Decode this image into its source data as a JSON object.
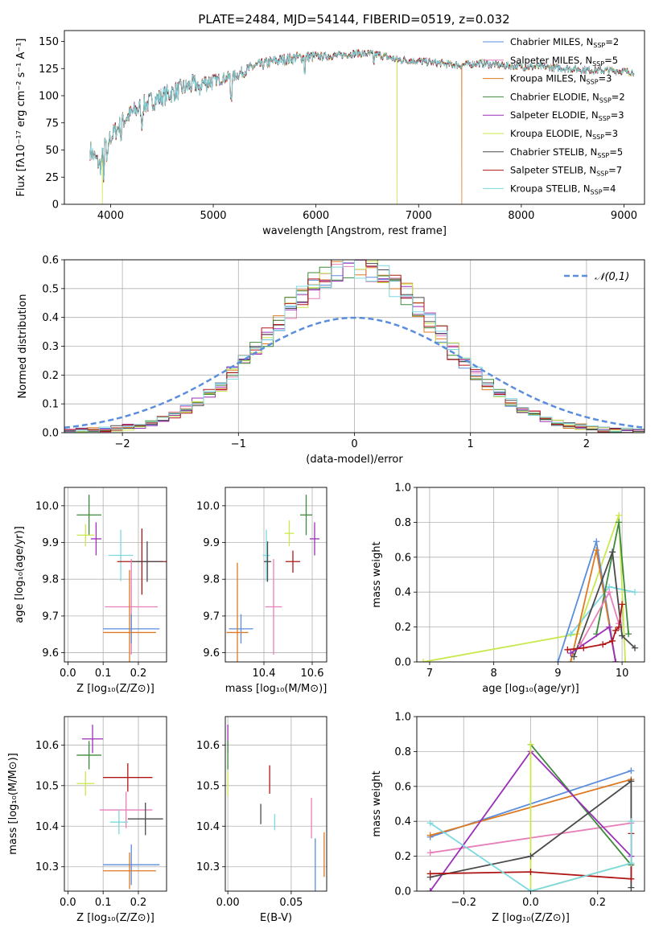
{
  "colors": {
    "Chabrier MILES": "#5b8ddd",
    "Salpeter MILES": "#e87fb9",
    "Kroupa MILES": "#dd7a22",
    "Chabrier ELODIE": "#3d8a3a",
    "Salpeter ELODIE": "#9a2fb8",
    "Kroupa ELODIE": "#c9e84c",
    "Chabrier STELIB": "#4a4a4a",
    "Salpeter STELIB": "#b01616",
    "Kroupa STELIB": "#7dd8e0"
  },
  "chart_data": [
    {
      "id": "spectrum",
      "type": "line",
      "title": "PLATE=2484, MJD=54144, FIBERID=0519, z=0.032",
      "xlabel": "wavelength [Angstrom, rest frame]",
      "ylabel": "Flux [fλ10⁻¹⁷ erg cm⁻² s⁻¹ A⁻¹]",
      "xlim": [
        3550,
        9200
      ],
      "ylim": [
        0,
        160
      ],
      "xticks": [
        4000,
        5000,
        6000,
        7000,
        8000,
        9000
      ],
      "yticks": [
        0,
        25,
        50,
        75,
        100,
        125,
        150
      ],
      "grid": false,
      "legend_position": "right",
      "legend": [
        {
          "base": "Chabrier MILES, N",
          "sub": "SSP",
          "tail": "=2"
        },
        {
          "base": "Salpeter MILES, N",
          "sub": "SSP",
          "tail": "=5"
        },
        {
          "base": "Kroupa MILES, N",
          "sub": "SSP",
          "tail": "=3"
        },
        {
          "base": "Chabrier ELODIE, N",
          "sub": "SSP",
          "tail": "=2"
        },
        {
          "base": "Salpeter ELODIE, N",
          "sub": "SSP",
          "tail": "=3"
        },
        {
          "base": "Kroupa ELODIE, N",
          "sub": "SSP",
          "tail": "=3"
        },
        {
          "base": "Chabrier STELIB, N",
          "sub": "SSP",
          "tail": "=5"
        },
        {
          "base": "Salpeter STELIB, N",
          "sub": "SSP",
          "tail": "=7"
        },
        {
          "base": "Kroupa STELIB, N",
          "sub": "SSP",
          "tail": "=4"
        }
      ],
      "continuum": [
        [
          3800,
          50
        ],
        [
          3900,
          35
        ],
        [
          3950,
          55
        ],
        [
          4050,
          68
        ],
        [
          4150,
          80
        ],
        [
          4300,
          90
        ],
        [
          4450,
          97
        ],
        [
          4600,
          103
        ],
        [
          4800,
          110
        ],
        [
          5000,
          114
        ],
        [
          5200,
          118
        ],
        [
          5400,
          127
        ],
        [
          5600,
          132
        ],
        [
          5800,
          135
        ],
        [
          6000,
          136
        ],
        [
          6200,
          137
        ],
        [
          6400,
          139
        ],
        [
          6600,
          138
        ],
        [
          6800,
          133
        ],
        [
          7000,
          132
        ],
        [
          7200,
          130
        ],
        [
          7400,
          128
        ],
        [
          7600,
          130
        ],
        [
          7800,
          128
        ],
        [
          8000,
          127
        ],
        [
          8300,
          126
        ],
        [
          8600,
          124
        ],
        [
          8900,
          123
        ],
        [
          9100,
          122
        ]
      ],
      "dips": [
        {
          "x": 3920,
          "to": 0,
          "series": "Kroupa ELODIE"
        },
        {
          "x": 6790,
          "to": 0,
          "series": "Kroupa ELODIE"
        },
        {
          "x": 7420,
          "to": 0,
          "series": "Kroupa MILES"
        }
      ]
    },
    {
      "id": "residuals",
      "type": "histogram",
      "xlabel": "(data-model)/error",
      "ylabel": "Normed distribution",
      "xlim": [
        -2.5,
        2.5
      ],
      "ylim": [
        0,
        0.6
      ],
      "xticks": [
        -2,
        -1,
        0,
        1,
        2
      ],
      "yticks": [
        0.0,
        0.1,
        0.2,
        0.3,
        0.4,
        0.5,
        0.6
      ],
      "grid": true,
      "bin_width": 0.1,
      "reference_curve": {
        "label": "N(0,1)",
        "mu": 0,
        "sigma": 1
      },
      "legend_position": "upper right"
    },
    {
      "id": "age_vs_Z",
      "type": "errorbar",
      "xlabel": "Z [log₁₀(Z/Z⊙)]",
      "ylabel": "age  [log₁₀(age/yr)]",
      "xlim": [
        -0.01,
        0.28
      ],
      "ylim": [
        9.575,
        10.05
      ],
      "xticks": [
        0.0,
        0.1,
        0.2
      ],
      "yticks": [
        9.6,
        9.7,
        9.8,
        9.9,
        10.0
      ],
      "grid": true,
      "points": [
        {
          "series": "Chabrier ELODIE",
          "x": 0.06,
          "xerr": 0.035,
          "y": 9.975,
          "yerr": 0.055
        },
        {
          "series": "Kroupa ELODIE",
          "x": 0.05,
          "xerr": 0.025,
          "y": 9.92,
          "yerr": 0.03
        },
        {
          "series": "Salpeter ELODIE",
          "x": 0.08,
          "xerr": 0.015,
          "y": 9.91,
          "yerr": 0.045
        },
        {
          "series": "Kroupa STELIB",
          "x": 0.15,
          "xerr": 0.035,
          "y": 9.865,
          "yerr": 0.07
        },
        {
          "series": "Salpeter STELIB",
          "x": 0.21,
          "xerr": 0.07,
          "y": 9.848,
          "yerr": 0.09
        },
        {
          "series": "Chabrier STELIB",
          "x": 0.225,
          "xerr": 0.045,
          "y": 9.848,
          "yerr": 0.055
        },
        {
          "series": "Salpeter MILES",
          "x": 0.18,
          "xerr": 0.075,
          "y": 9.725,
          "yerr": 0.13
        },
        {
          "series": "Chabrier MILES",
          "x": 0.18,
          "xerr": 0.08,
          "y": 9.665,
          "yerr": 0.04
        },
        {
          "series": "Kroupa MILES",
          "x": 0.175,
          "xerr": 0.075,
          "y": 9.655,
          "yerr": 0.17
        }
      ]
    },
    {
      "id": "age_vs_mass",
      "type": "errorbar",
      "xlabel": "mass [log₁₀(M/M⊙)]",
      "ylabel": "",
      "xlim": [
        10.24,
        10.66
      ],
      "ylim": [
        9.575,
        10.05
      ],
      "xticks": [
        10.4,
        10.6
      ],
      "yticks": [
        9.6,
        9.7,
        9.8,
        9.9,
        10.0
      ],
      "grid": true,
      "points": [
        {
          "series": "Chabrier ELODIE",
          "x": 10.575,
          "xerr": 0.025,
          "y": 9.975,
          "yerr": 0.055
        },
        {
          "series": "Kroupa ELODIE",
          "x": 10.505,
          "xerr": 0.02,
          "y": 9.925,
          "yerr": 0.035
        },
        {
          "series": "Salpeter ELODIE",
          "x": 10.61,
          "xerr": 0.02,
          "y": 9.91,
          "yerr": 0.045
        },
        {
          "series": "Kroupa STELIB",
          "x": 10.41,
          "xerr": 0.015,
          "y": 9.865,
          "yerr": 0.07
        },
        {
          "series": "Chabrier STELIB",
          "x": 10.415,
          "xerr": 0.015,
          "y": 9.848,
          "yerr": 0.055
        },
        {
          "series": "Salpeter STELIB",
          "x": 10.52,
          "xerr": 0.03,
          "y": 9.848,
          "yerr": 0.03
        },
        {
          "series": "Salpeter MILES",
          "x": 10.44,
          "xerr": 0.035,
          "y": 9.725,
          "yerr": 0.13
        },
        {
          "series": "Chabrier MILES",
          "x": 10.305,
          "xerr": 0.05,
          "y": 9.665,
          "yerr": 0.04
        },
        {
          "series": "Kroupa MILES",
          "x": 10.29,
          "xerr": 0.045,
          "y": 9.655,
          "yerr": 0.19
        }
      ]
    },
    {
      "id": "weight_vs_age",
      "type": "line",
      "xlabel": "age  [log₁₀(age/yr)]",
      "ylabel": "mass weight",
      "xlim": [
        6.8,
        10.35
      ],
      "ylim": [
        0,
        1
      ],
      "xticks": [
        7,
        8,
        9,
        10
      ],
      "yticks": [
        0.0,
        0.2,
        0.4,
        0.6,
        0.8,
        1.0
      ],
      "grid": true,
      "series": [
        {
          "name": "Kroupa ELODIE",
          "x": [
            6.9,
            9.3,
            9.95,
            10.05
          ],
          "y": [
            0.0,
            0.16,
            0.84,
            0.0
          ]
        },
        {
          "name": "Kroupa STELIB",
          "x": [
            9.2,
            9.8,
            10.2
          ],
          "y": [
            0.16,
            0.43,
            0.4
          ]
        },
        {
          "name": "Chabrier MILES",
          "x": [
            9.0,
            9.6,
            9.9
          ],
          "y": [
            0.0,
            0.69,
            0.0
          ]
        },
        {
          "name": "Kroupa MILES",
          "x": [
            9.2,
            9.6,
            9.9
          ],
          "y": [
            0.0,
            0.64,
            0.0
          ]
        },
        {
          "name": "Chabrier ELODIE",
          "x": [
            9.6,
            9.95,
            10.1
          ],
          "y": [
            0.16,
            0.8,
            0.16
          ]
        },
        {
          "name": "Chabrier STELIB",
          "x": [
            9.25,
            9.85,
            10.0,
            10.2
          ],
          "y": [
            0.03,
            0.63,
            0.15,
            0.08
          ]
        },
        {
          "name": "Salpeter MILES",
          "x": [
            9.35,
            9.8,
            9.95
          ],
          "y": [
            0.1,
            0.4,
            0.22
          ]
        },
        {
          "name": "Salpeter ELODIE",
          "x": [
            9.2,
            9.8,
            9.9
          ],
          "y": [
            0.05,
            0.2,
            0.0
          ]
        },
        {
          "name": "Salpeter STELIB",
          "x": [
            9.15,
            9.4,
            9.7,
            9.85,
            9.9,
            9.95,
            10.0
          ],
          "y": [
            0.07,
            0.08,
            0.1,
            0.12,
            0.18,
            0.2,
            0.33
          ]
        }
      ]
    },
    {
      "id": "mass_vs_Z",
      "type": "errorbar",
      "xlabel": "Z [log₁₀(Z/Z⊙)]",
      "ylabel": "mass [log₁₀(M/M⊙)]",
      "xlim": [
        -0.01,
        0.28
      ],
      "ylim": [
        10.24,
        10.67
      ],
      "xticks": [
        0.0,
        0.1,
        0.2
      ],
      "yticks": [
        10.3,
        10.4,
        10.5,
        10.6
      ],
      "grid": true,
      "points": [
        {
          "series": "Salpeter ELODIE",
          "x": 0.07,
          "xerr": 0.03,
          "y": 10.615,
          "yerr": 0.035
        },
        {
          "series": "Chabrier ELODIE",
          "x": 0.06,
          "xerr": 0.035,
          "y": 10.575,
          "yerr": 0.035
        },
        {
          "series": "Kroupa ELODIE",
          "x": 0.05,
          "xerr": 0.025,
          "y": 10.505,
          "yerr": 0.03
        },
        {
          "series": "Salpeter STELIB",
          "x": 0.17,
          "xerr": 0.07,
          "y": 10.52,
          "yerr": 0.035
        },
        {
          "series": "Salpeter MILES",
          "x": 0.165,
          "xerr": 0.075,
          "y": 10.44,
          "yerr": 0.045
        },
        {
          "series": "Chabrier STELIB",
          "x": 0.22,
          "xerr": 0.05,
          "y": 10.418,
          "yerr": 0.04
        },
        {
          "series": "Kroupa STELIB",
          "x": 0.145,
          "xerr": 0.025,
          "y": 10.41,
          "yerr": 0.03
        },
        {
          "series": "Chabrier MILES",
          "x": 0.18,
          "xerr": 0.08,
          "y": 10.305,
          "yerr": 0.05
        },
        {
          "series": "Kroupa MILES",
          "x": 0.175,
          "xerr": 0.075,
          "y": 10.29,
          "yerr": 0.045
        }
      ]
    },
    {
      "id": "mass_vs_EBV",
      "type": "errorbar",
      "xlabel": "E(B-V)",
      "ylabel": "",
      "xlim": [
        -0.002,
        0.078
      ],
      "ylim": [
        10.24,
        10.67
      ],
      "xticks": [
        0.0,
        0.05
      ],
      "yticks": [
        10.3,
        10.4,
        10.5,
        10.6
      ],
      "grid": true,
      "points": [
        {
          "series": "Salpeter ELODIE",
          "x": 0.0,
          "xerr": 0,
          "y": 10.615,
          "yerr": 0.035
        },
        {
          "series": "Chabrier ELODIE",
          "x": 0.0,
          "xerr": 0,
          "y": 10.575,
          "yerr": 0.035
        },
        {
          "series": "Kroupa ELODIE",
          "x": 0.0,
          "xerr": 0,
          "y": 10.505,
          "yerr": 0.03
        },
        {
          "series": "Salpeter STELIB",
          "x": 0.033,
          "xerr": 0,
          "y": 10.515,
          "yerr": 0.035
        },
        {
          "series": "Chabrier STELIB",
          "x": 0.026,
          "xerr": 0,
          "y": 10.43,
          "yerr": 0.025
        },
        {
          "series": "Kroupa STELIB",
          "x": 0.037,
          "xerr": 0,
          "y": 10.41,
          "yerr": 0.02
        },
        {
          "series": "Salpeter MILES",
          "x": 0.066,
          "xerr": 0,
          "y": 10.42,
          "yerr": 0.05
        },
        {
          "series": "Chabrier MILES",
          "x": 0.069,
          "xerr": 0,
          "y": 10.305,
          "yerr": 0.065
        },
        {
          "series": "Kroupa MILES",
          "x": 0.076,
          "xerr": 0,
          "y": 10.33,
          "yerr": 0.055
        }
      ]
    },
    {
      "id": "weight_vs_Z",
      "type": "line",
      "xlabel": "Z [log₁₀(Z/Z⊙)]",
      "ylabel": "mass weight",
      "xlim": [
        -0.34,
        0.34
      ],
      "ylim": [
        0,
        1
      ],
      "xticks": [
        -0.2,
        0.0,
        0.2
      ],
      "yticks": [
        0.0,
        0.2,
        0.4,
        0.6,
        0.8,
        1.0
      ],
      "grid": true,
      "series": [
        {
          "name": "Chabrier MILES",
          "x": [
            -0.3,
            0.3
          ],
          "y": [
            0.31,
            0.69
          ]
        },
        {
          "name": "Kroupa MILES",
          "x": [
            -0.3,
            0.3
          ],
          "y": [
            0.32,
            0.64
          ]
        },
        {
          "name": "Salpeter MILES",
          "x": [
            -0.3,
            0.3
          ],
          "y": [
            0.22,
            0.39
          ]
        },
        {
          "name": "Chabrier ELODIE",
          "x": [
            0.0,
            0.3
          ],
          "y": [
            0.84,
            0.15
          ]
        },
        {
          "name": "Salpeter ELODIE",
          "x": [
            -0.3,
            0.0,
            0.3
          ],
          "y": [
            0.0,
            0.8,
            0.2
          ]
        },
        {
          "name": "Kroupa ELODIE",
          "x": [
            0.0,
            0.0,
            0.3
          ],
          "y": [
            0.84,
            0.0,
            0.16
          ]
        },
        {
          "name": "Chabrier STELIB",
          "x": [
            -0.3,
            0.0,
            0.3,
            0.3
          ],
          "y": [
            0.08,
            0.2,
            0.63,
            0.02
          ]
        },
        {
          "name": "Salpeter STELIB",
          "x": [
            -0.3,
            0.0,
            0.3,
            0.3
          ],
          "y": [
            0.1,
            0.11,
            0.07,
            0.33
          ]
        },
        {
          "name": "Kroupa STELIB",
          "x": [
            -0.3,
            0.0,
            0.3,
            0.3
          ],
          "y": [
            0.39,
            0.0,
            0.16,
            0.4
          ]
        }
      ]
    }
  ]
}
